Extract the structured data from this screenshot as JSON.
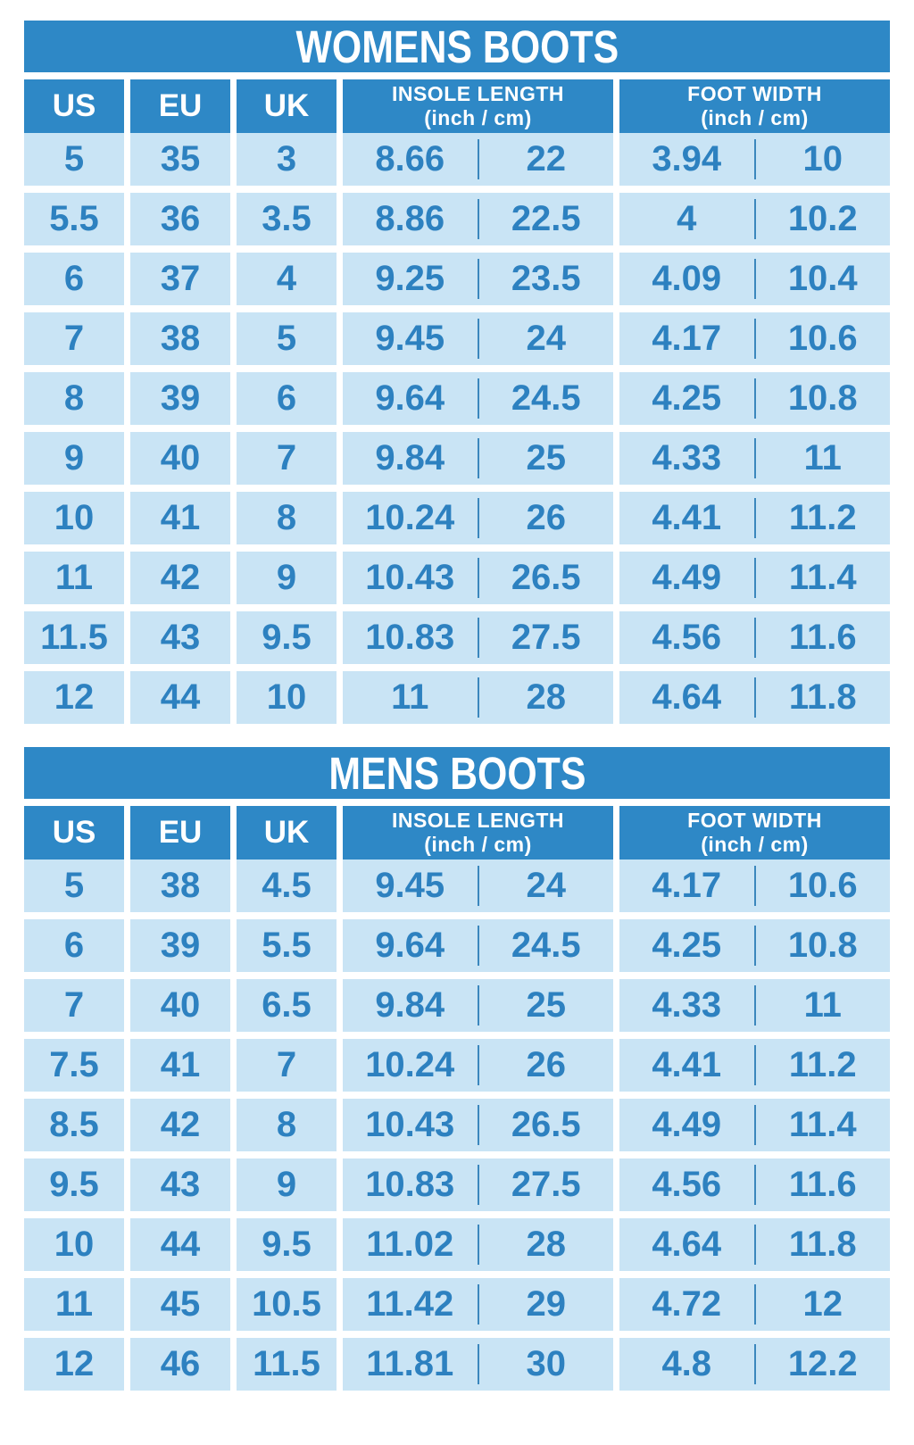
{
  "colors": {
    "header_bg": "#2e88c6",
    "header_text": "#ffffff",
    "cell_bg": "#c9e4f5",
    "cell_text": "#2d81c0",
    "divider": "#3b87bd",
    "page_bg": "#ffffff"
  },
  "chart_data": [
    {
      "type": "table",
      "title": "WOMENS BOOTS",
      "columns": {
        "us": "US",
        "eu": "EU",
        "uk": "UK",
        "insole": {
          "title": "INSOLE LENGTH",
          "unit": "(inch / cm)"
        },
        "foot": {
          "title": "FOOT WIDTH",
          "unit": "(inch / cm)"
        }
      },
      "rows": [
        {
          "us": "5",
          "eu": "35",
          "uk": "3",
          "insole_in": "8.66",
          "insole_cm": "22",
          "width_in": "3.94",
          "width_cm": "10"
        },
        {
          "us": "5.5",
          "eu": "36",
          "uk": "3.5",
          "insole_in": "8.86",
          "insole_cm": "22.5",
          "width_in": "4",
          "width_cm": "10.2"
        },
        {
          "us": "6",
          "eu": "37",
          "uk": "4",
          "insole_in": "9.25",
          "insole_cm": "23.5",
          "width_in": "4.09",
          "width_cm": "10.4"
        },
        {
          "us": "7",
          "eu": "38",
          "uk": "5",
          "insole_in": "9.45",
          "insole_cm": "24",
          "width_in": "4.17",
          "width_cm": "10.6"
        },
        {
          "us": "8",
          "eu": "39",
          "uk": "6",
          "insole_in": "9.64",
          "insole_cm": "24.5",
          "width_in": "4.25",
          "width_cm": "10.8"
        },
        {
          "us": "9",
          "eu": "40",
          "uk": "7",
          "insole_in": "9.84",
          "insole_cm": "25",
          "width_in": "4.33",
          "width_cm": "11"
        },
        {
          "us": "10",
          "eu": "41",
          "uk": "8",
          "insole_in": "10.24",
          "insole_cm": "26",
          "width_in": "4.41",
          "width_cm": "11.2"
        },
        {
          "us": "11",
          "eu": "42",
          "uk": "9",
          "insole_in": "10.43",
          "insole_cm": "26.5",
          "width_in": "4.49",
          "width_cm": "11.4"
        },
        {
          "us": "11.5",
          "eu": "43",
          "uk": "9.5",
          "insole_in": "10.83",
          "insole_cm": "27.5",
          "width_in": "4.56",
          "width_cm": "11.6"
        },
        {
          "us": "12",
          "eu": "44",
          "uk": "10",
          "insole_in": "11",
          "insole_cm": "28",
          "width_in": "4.64",
          "width_cm": "11.8"
        }
      ]
    },
    {
      "type": "table",
      "title": "MENS BOOTS",
      "columns": {
        "us": "US",
        "eu": "EU",
        "uk": "UK",
        "insole": {
          "title": "INSOLE LENGTH",
          "unit": "(inch / cm)"
        },
        "foot": {
          "title": "FOOT WIDTH",
          "unit": "(inch / cm)"
        }
      },
      "rows": [
        {
          "us": "5",
          "eu": "38",
          "uk": "4.5",
          "insole_in": "9.45",
          "insole_cm": "24",
          "width_in": "4.17",
          "width_cm": "10.6"
        },
        {
          "us": "6",
          "eu": "39",
          "uk": "5.5",
          "insole_in": "9.64",
          "insole_cm": "24.5",
          "width_in": "4.25",
          "width_cm": "10.8"
        },
        {
          "us": "7",
          "eu": "40",
          "uk": "6.5",
          "insole_in": "9.84",
          "insole_cm": "25",
          "width_in": "4.33",
          "width_cm": "11"
        },
        {
          "us": "7.5",
          "eu": "41",
          "uk": "7",
          "insole_in": "10.24",
          "insole_cm": "26",
          "width_in": "4.41",
          "width_cm": "11.2"
        },
        {
          "us": "8.5",
          "eu": "42",
          "uk": "8",
          "insole_in": "10.43",
          "insole_cm": "26.5",
          "width_in": "4.49",
          "width_cm": "11.4"
        },
        {
          "us": "9.5",
          "eu": "43",
          "uk": "9",
          "insole_in": "10.83",
          "insole_cm": "27.5",
          "width_in": "4.56",
          "width_cm": "11.6"
        },
        {
          "us": "10",
          "eu": "44",
          "uk": "9.5",
          "insole_in": "11.02",
          "insole_cm": "28",
          "width_in": "4.64",
          "width_cm": "11.8"
        },
        {
          "us": "11",
          "eu": "45",
          "uk": "10.5",
          "insole_in": "11.42",
          "insole_cm": "29",
          "width_in": "4.72",
          "width_cm": "12"
        },
        {
          "us": "12",
          "eu": "46",
          "uk": "11.5",
          "insole_in": "11.81",
          "insole_cm": "30",
          "width_in": "4.8",
          "width_cm": "12.2"
        }
      ]
    }
  ]
}
